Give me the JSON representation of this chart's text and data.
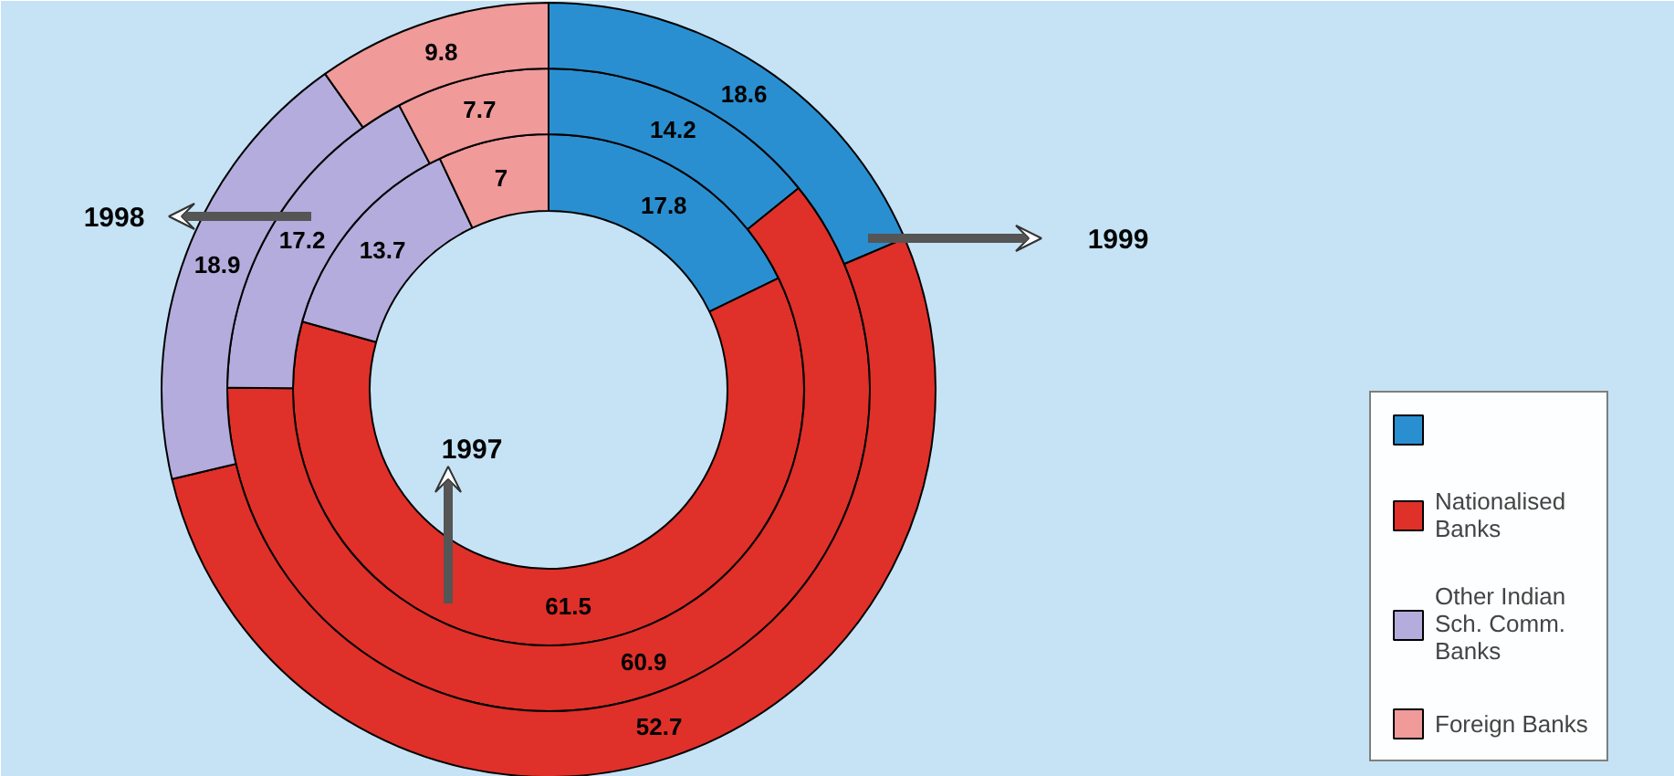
{
  "chart_data": {
    "type": "donut",
    "categories": [
      null,
      "Nationalised Banks",
      "Other Indian Sch. Comm. Banks",
      "Foreign Banks"
    ],
    "colors": [
      "#2a8fd0",
      "#e0302a",
      "#b4acdc",
      "#f09a9a"
    ],
    "series": [
      {
        "name": "1997",
        "values": [
          17.8,
          61.5,
          13.7,
          7
        ]
      },
      {
        "name": "1998",
        "values": [
          14.2,
          60.9,
          17.2,
          7.7
        ]
      },
      {
        "name": "1999",
        "values": [
          18.6,
          52.7,
          18.9,
          9.8
        ]
      }
    ],
    "data_labels": true,
    "legend": "right"
  }
}
